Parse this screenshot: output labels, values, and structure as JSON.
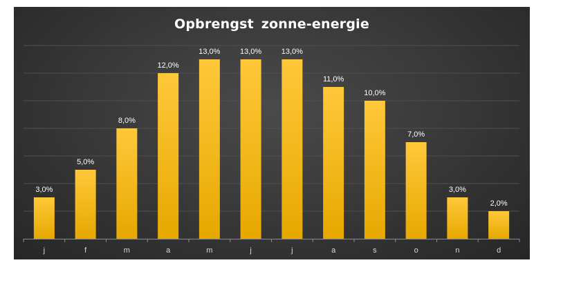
{
  "chart_data": {
    "type": "bar",
    "title": "Opbrengst  zonne-energie",
    "categories": [
      "j",
      "f",
      "m",
      "a",
      "m",
      "j",
      "j",
      "a",
      "s",
      "o",
      "n",
      "d"
    ],
    "values": [
      3.0,
      5.0,
      8.0,
      12.0,
      13.0,
      13.0,
      13.0,
      11.0,
      10.0,
      7.0,
      3.0,
      2.0
    ],
    "data_labels": [
      "3,0%",
      "5,0%",
      "8,0%",
      "12,0%",
      "13,0%",
      "13,0%",
      "13,0%",
      "11,0%",
      "10,0%",
      "7,0%",
      "3,0%",
      "2,0%"
    ],
    "xlabel": "",
    "ylabel": "",
    "ylim": [
      0,
      14
    ],
    "y_axis_visible": false,
    "grid": true,
    "legend": "none",
    "colors": {
      "background": "#333333",
      "bar_top": "#ffc83a",
      "bar_bottom": "#e6a800",
      "text": "#ffffff",
      "tick_text": "#d9d9d9",
      "gridline": "#4f4f4f",
      "axis": "#8c8c8c"
    }
  }
}
